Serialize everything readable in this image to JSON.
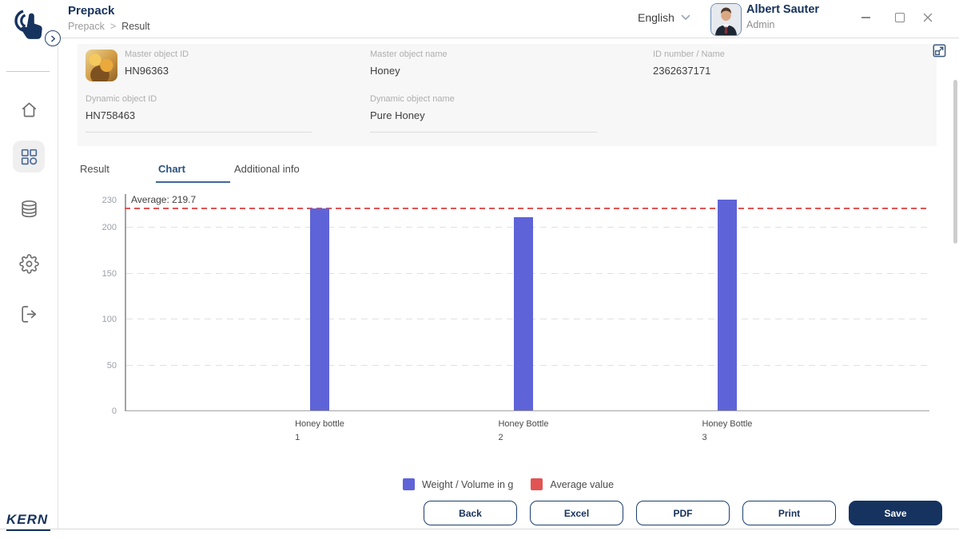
{
  "header": {
    "title": "Prepack",
    "breadcrumb": {
      "parent": "Prepack",
      "separator": ">",
      "current": "Result"
    },
    "language": {
      "label": "English"
    },
    "user": {
      "name": "Albert Sauter",
      "role": "Admin"
    }
  },
  "sidebar": {
    "brand": "KERN",
    "items": [
      {
        "icon": "home-icon",
        "active": false
      },
      {
        "icon": "apps-grid-icon",
        "active": true
      },
      {
        "icon": "database-icon",
        "active": false
      },
      {
        "icon": "settings-icon",
        "active": false
      },
      {
        "icon": "logout-icon",
        "active": false
      }
    ]
  },
  "form": {
    "fields": [
      {
        "label": "Master object ID",
        "value": "HN96363"
      },
      {
        "label": "Master object name",
        "value": "Honey"
      },
      {
        "label": "ID number / Name",
        "value": "2362637171"
      },
      {
        "label": "Dynamic object ID",
        "value": "HN758463"
      },
      {
        "label": "Dynamic object name",
        "value": "Pure Honey"
      }
    ]
  },
  "tabs": {
    "items": [
      {
        "label": "Result",
        "active": false
      },
      {
        "label": "Chart",
        "active": true
      },
      {
        "label": "Additional info",
        "active": false
      }
    ]
  },
  "chart_data": {
    "type": "bar",
    "title": "",
    "xlabel": "",
    "ylabel": "",
    "categories": [
      [
        "Honey bottle",
        "1"
      ],
      [
        "Honey Bottle",
        "2"
      ],
      [
        "Honey Bottle",
        "3"
      ]
    ],
    "values": [
      220,
      210,
      229
    ],
    "average": 219.7,
    "average_label": "Average: 219.7",
    "ylim": [
      0,
      230
    ],
    "y_ticks": [
      0,
      50,
      100,
      150,
      200,
      230
    ],
    "grid": "dashed-horizontal",
    "bar_color": "#5e63d8",
    "average_color": "#e25453",
    "legend_position": "bottom-center",
    "legend": [
      {
        "label": "Weight / Volume in g",
        "color": "#5e63d8"
      },
      {
        "label": "Average value",
        "color": "#e25453"
      }
    ]
  },
  "footer": {
    "buttons": [
      {
        "label": "Back",
        "variant": "outline"
      },
      {
        "label": "Excel",
        "variant": "outline"
      },
      {
        "label": "PDF",
        "variant": "outline"
      },
      {
        "label": "Print",
        "variant": "outline"
      },
      {
        "label": "Save",
        "variant": "primary"
      }
    ]
  },
  "colors": {
    "brand_navy": "#16325c",
    "bar_blue": "#5e63d8",
    "average_red": "#e25453",
    "panel_gray": "#f7f7f7"
  }
}
